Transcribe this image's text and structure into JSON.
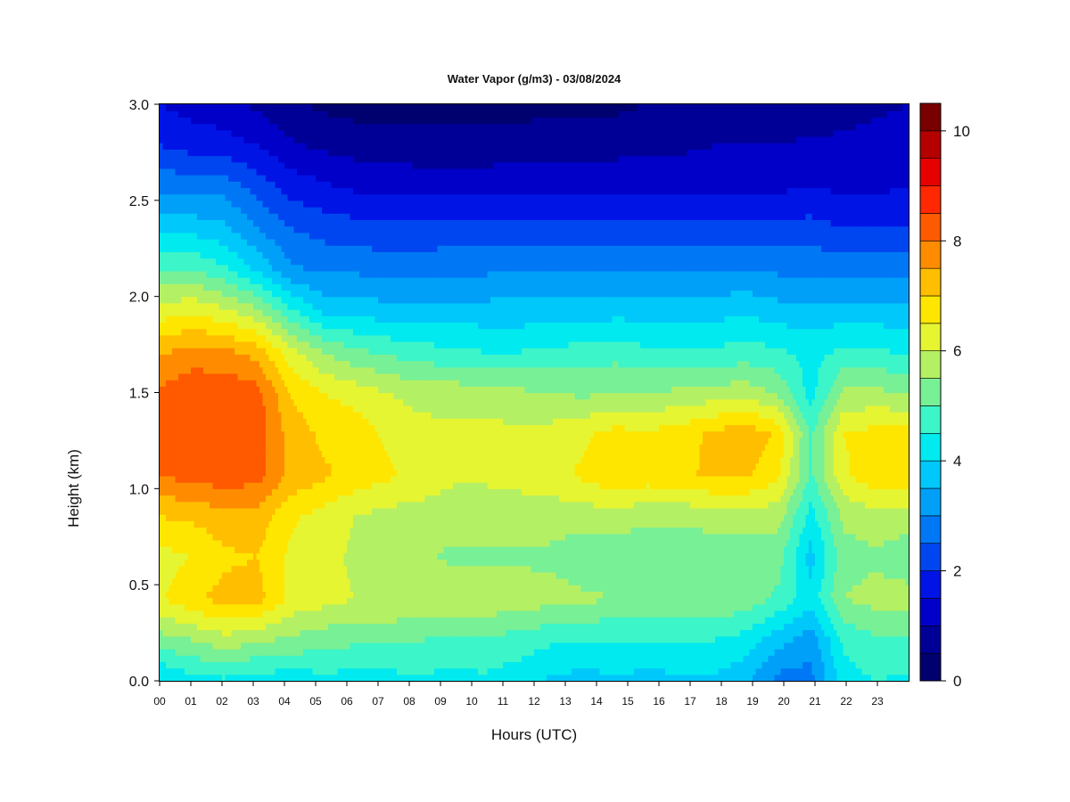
{
  "chart_data": {
    "type": "heatmap",
    "title": "Water Vapor (g/m3) - 03/08/2024",
    "xlabel": "Hours (UTC)",
    "ylabel": "Height (km)",
    "xlim": [
      0,
      24
    ],
    "ylim": [
      0.0,
      3.0
    ],
    "x_ticks": [
      "00",
      "01",
      "02",
      "03",
      "04",
      "05",
      "06",
      "07",
      "08",
      "09",
      "10",
      "11",
      "12",
      "13",
      "14",
      "15",
      "16",
      "17",
      "18",
      "19",
      "20",
      "21",
      "22",
      "23"
    ],
    "y_ticks": [
      "0.0",
      "0.5",
      "1.0",
      "1.5",
      "2.0",
      "2.5",
      "3.0"
    ],
    "colorbar": {
      "min": 0,
      "max": 10.5,
      "levels": [
        0,
        0.5,
        1,
        1.5,
        2,
        2.5,
        3,
        3.5,
        4,
        4.5,
        5,
        5.5,
        6,
        6.5,
        7,
        7.5,
        8,
        8.5,
        9,
        9.5,
        10,
        10.5
      ],
      "colors": [
        "#00006e",
        "#000096",
        "#0000c8",
        "#0014e6",
        "#0046f0",
        "#0078f5",
        "#00a0f8",
        "#00c8fa",
        "#00eaf0",
        "#3cf5c8",
        "#78f096",
        "#b4f064",
        "#e6f532",
        "#ffe600",
        "#ffbe00",
        "#ff8c00",
        "#ff5a00",
        "#ff2800",
        "#e60000",
        "#b40000",
        "#780000"
      ],
      "tick_labels": [
        "0",
        "2",
        "4",
        "6",
        "8",
        "10"
      ]
    },
    "grid": false,
    "values": [
      [
        3.9,
        4.3,
        4.4,
        4.2,
        4.2,
        4.3,
        4.3,
        4.3,
        4.4,
        4.3,
        4.4,
        4.2,
        3.9,
        3.8,
        3.9,
        3.8,
        3.9,
        3.9,
        3.6,
        2.8,
        2.8,
        4.3,
        4.5,
        4.4
      ],
      [
        5.3,
        5.5,
        5.8,
        5.6,
        5.4,
        5.2,
        5.1,
        5.1,
        5.0,
        4.9,
        4.9,
        4.8,
        4.6,
        4.5,
        4.5,
        4.5,
        4.5,
        4.5,
        4.3,
        3.7,
        3.2,
        4.6,
        4.9,
        4.9
      ],
      [
        6.4,
        6.9,
        7.2,
        7.2,
        6.4,
        6.2,
        6.0,
        6.0,
        5.9,
        5.9,
        5.9,
        5.8,
        5.7,
        5.6,
        5.5,
        5.5,
        5.5,
        5.5,
        5.3,
        4.9,
        4.2,
        5.5,
        5.7,
        5.7
      ],
      [
        6.3,
        6.5,
        6.9,
        7.0,
        6.4,
        6.2,
        5.9,
        5.7,
        5.6,
        5.4,
        5.4,
        5.4,
        5.4,
        5.2,
        5.1,
        5.1,
        5.1,
        5.2,
        5.2,
        5.2,
        3.8,
        5.3,
        5.4,
        5.2
      ],
      [
        7.0,
        7.1,
        7.3,
        7.3,
        6.6,
        6.3,
        6.0,
        5.8,
        5.8,
        5.7,
        5.7,
        5.7,
        5.7,
        5.7,
        5.8,
        5.6,
        5.6,
        5.7,
        5.7,
        5.7,
        4.3,
        5.6,
        5.8,
        5.7
      ],
      [
        8.0,
        8.2,
        8.3,
        8.2,
        7.4,
        7.1,
        6.8,
        6.6,
        6.3,
        6.1,
        6.1,
        6.2,
        6.3,
        6.6,
        6.9,
        6.8,
        6.9,
        7.1,
        7.1,
        6.6,
        4.9,
        6.4,
        6.9,
        6.9
      ],
      [
        8.3,
        8.5,
        8.5,
        8.3,
        7.3,
        6.9,
        6.8,
        6.4,
        6.2,
        6.1,
        6.2,
        6.1,
        6.2,
        6.4,
        6.7,
        6.6,
        6.8,
        7.1,
        7.4,
        6.9,
        4.9,
        6.5,
        6.7,
        6.7
      ],
      [
        8.1,
        8.4,
        8.4,
        8.2,
        7.0,
        6.5,
        6.3,
        6.0,
        5.8,
        5.8,
        5.7,
        5.6,
        5.5,
        5.4,
        5.5,
        5.5,
        5.6,
        5.7,
        5.8,
        5.4,
        4.3,
        5.6,
        5.6,
        5.5
      ],
      [
        7.4,
        7.7,
        7.6,
        7.3,
        6.2,
        5.5,
        5.1,
        4.9,
        4.7,
        4.6,
        4.5,
        4.5,
        4.6,
        4.7,
        4.8,
        4.6,
        4.6,
        4.6,
        4.7,
        4.6,
        4.3,
        4.6,
        4.6,
        4.4
      ],
      [
        6.2,
        6.4,
        6.1,
        5.6,
        4.6,
        3.9,
        3.8,
        3.7,
        3.7,
        3.7,
        3.7,
        3.7,
        3.7,
        3.7,
        3.8,
        3.8,
        3.8,
        3.8,
        3.9,
        3.7,
        3.7,
        3.7,
        3.7,
        3.6
      ],
      [
        5.0,
        5.0,
        4.6,
        3.9,
        3.1,
        2.9,
        2.9,
        2.8,
        2.8,
        2.9,
        2.9,
        3.0,
        3.0,
        3.0,
        3.0,
        3.0,
        2.9,
        3.0,
        3.0,
        2.9,
        2.9,
        2.8,
        2.8,
        2.8
      ],
      [
        3.9,
        3.8,
        3.6,
        3.0,
        2.5,
        2.3,
        2.2,
        2.1,
        2.1,
        2.2,
        2.2,
        2.2,
        2.2,
        2.2,
        2.2,
        2.2,
        2.2,
        2.2,
        2.2,
        2.2,
        2.2,
        2.0,
        2.0,
        2.0
      ],
      [
        2.9,
        2.8,
        2.8,
        2.3,
        1.8,
        1.6,
        1.4,
        1.3,
        1.3,
        1.3,
        1.3,
        1.4,
        1.4,
        1.4,
        1.4,
        1.4,
        1.4,
        1.4,
        1.4,
        1.4,
        1.5,
        1.4,
        1.4,
        1.5
      ],
      [
        2.0,
        1.8,
        1.7,
        1.5,
        1.1,
        0.9,
        0.8,
        0.8,
        0.7,
        0.7,
        0.7,
        0.7,
        0.8,
        0.8,
        0.8,
        0.9,
        0.9,
        1.0,
        1.0,
        1.0,
        1.1,
        1.1,
        1.2,
        1.3
      ],
      [
        1.5,
        1.3,
        1.2,
        0.9,
        0.6,
        0.4,
        0.3,
        0.3,
        0.3,
        0.3,
        0.3,
        0.3,
        0.4,
        0.4,
        0.4,
        0.5,
        0.5,
        0.6,
        0.6,
        0.6,
        0.7,
        0.8,
        0.9,
        1.0
      ]
    ]
  }
}
